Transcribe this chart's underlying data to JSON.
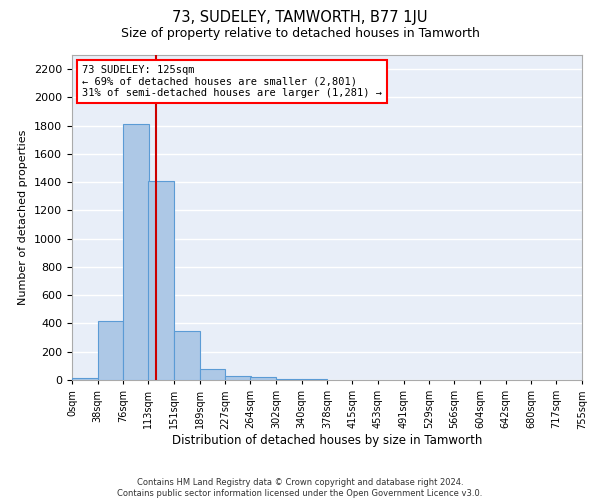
{
  "title": "73, SUDELEY, TAMWORTH, B77 1JU",
  "subtitle": "Size of property relative to detached houses in Tamworth",
  "xlabel": "Distribution of detached houses by size in Tamworth",
  "ylabel": "Number of detached properties",
  "footer_line1": "Contains HM Land Registry data © Crown copyright and database right 2024.",
  "footer_line2": "Contains public sector information licensed under the Open Government Licence v3.0.",
  "annotation_line1": "73 SUDELEY: 125sqm",
  "annotation_line2": "← 69% of detached houses are smaller (2,801)",
  "annotation_line3": "31% of semi-detached houses are larger (1,281) →",
  "bar_color": "#adc8e6",
  "bar_edge_color": "#5b9bd5",
  "background_color": "#e8eef8",
  "grid_color": "#ffffff",
  "redline_color": "#cc0000",
  "bin_edges": [
    0,
    38,
    76,
    113,
    151,
    189,
    227,
    264,
    302,
    340,
    378,
    415,
    453,
    491,
    529,
    566,
    604,
    642,
    680,
    717,
    755
  ],
  "bin_labels": [
    "0sqm",
    "38sqm",
    "76sqm",
    "113sqm",
    "151sqm",
    "189sqm",
    "227sqm",
    "264sqm",
    "302sqm",
    "340sqm",
    "378sqm",
    "415sqm",
    "453sqm",
    "491sqm",
    "529sqm",
    "566sqm",
    "604sqm",
    "642sqm",
    "680sqm",
    "717sqm",
    "755sqm"
  ],
  "bar_heights": [
    15,
    420,
    1810,
    1410,
    345,
    75,
    30,
    20,
    10,
    5,
    0,
    0,
    0,
    0,
    0,
    0,
    0,
    0,
    0,
    0
  ],
  "property_size": 125,
  "ylim": [
    0,
    2300
  ],
  "yticks": [
    0,
    200,
    400,
    600,
    800,
    1000,
    1200,
    1400,
    1600,
    1800,
    2000,
    2200
  ],
  "xlim": [
    0,
    755
  ]
}
